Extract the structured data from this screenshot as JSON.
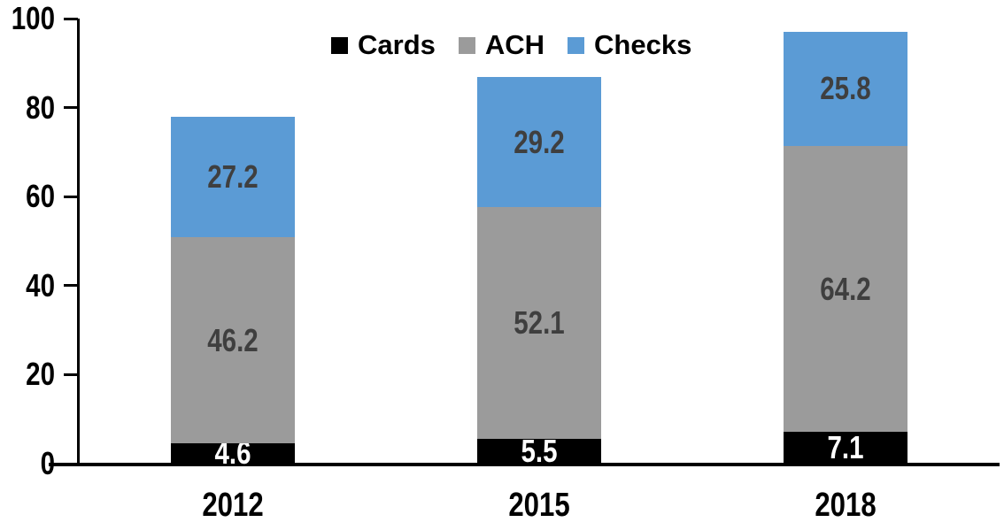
{
  "chart_data": {
    "type": "bar",
    "stacked": true,
    "title": "",
    "xlabel": "",
    "ylabel": "",
    "categories": [
      "2012",
      "2015",
      "2018"
    ],
    "series": [
      {
        "name": "Cards",
        "values": [
          4.6,
          5.5,
          7.1
        ],
        "color": "#000000",
        "label_color": "#ffffff"
      },
      {
        "name": "ACH",
        "values": [
          46.2,
          52.1,
          64.2
        ],
        "color": "#9b9b9b",
        "label_color": "#3f3f3f"
      },
      {
        "name": "Checks",
        "values": [
          27.2,
          29.2,
          25.8
        ],
        "color": "#5b9bd5",
        "label_color": "#3f3f3f"
      }
    ],
    "totals": [
      78.0,
      86.8,
      97.1
    ],
    "ylim": [
      0,
      100
    ],
    "yticks": [
      0,
      20,
      40,
      60,
      80,
      100
    ],
    "grid": false,
    "data_labels": true,
    "data_label_decimals": 1,
    "legend_position": "top-center",
    "legend_entries": [
      "Cards",
      "ACH",
      "Checks"
    ],
    "axis_color": "#000000",
    "background_color": "#ffffff"
  }
}
